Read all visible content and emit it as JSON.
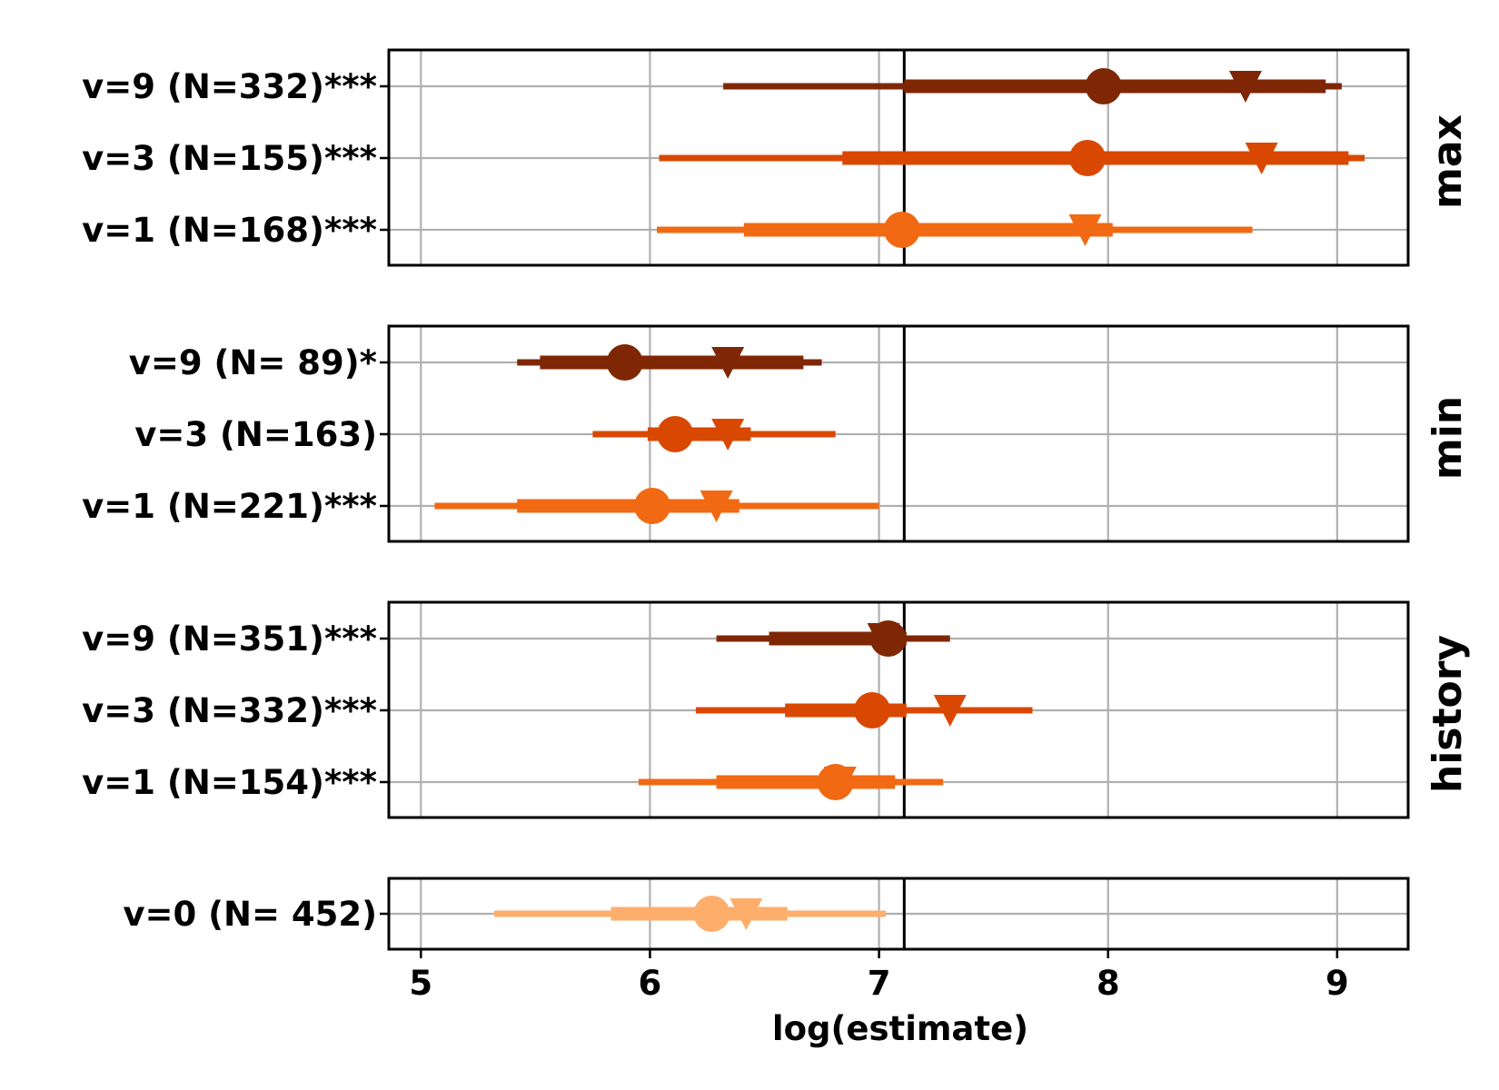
{
  "chart_data": {
    "type": "forest",
    "xlabel": "log(estimate)",
    "xlim": [
      4.86,
      9.31
    ],
    "x_ticks": [
      "5",
      "6",
      "7",
      "8",
      "9"
    ],
    "reference_line": 7.11,
    "grid": true,
    "colors": {
      "v0": "#fdae6b",
      "v1": "#f16913",
      "v3": "#d94801",
      "v9": "#7f2704"
    },
    "panels": [
      {
        "facet": "max",
        "rows": [
          {
            "label": "v=9 (N=332)***",
            "color_key": "v9",
            "outer": [
              6.32,
              9.02
            ],
            "inner": [
              7.11,
              8.95
            ],
            "point": 7.98,
            "triangle": 8.6
          },
          {
            "label": "v=3 (N=155)***",
            "color_key": "v3",
            "outer": [
              6.04,
              9.12
            ],
            "inner": [
              6.84,
              9.05
            ],
            "point": 7.91,
            "triangle": 8.67
          },
          {
            "label": "v=1 (N=168)***",
            "color_key": "v1",
            "outer": [
              6.03,
              8.63
            ],
            "inner": [
              6.41,
              8.02
            ],
            "point": 7.1,
            "triangle": 7.9
          }
        ]
      },
      {
        "facet": "min",
        "rows": [
          {
            "label": "v=9 (N=  89)*",
            "color_key": "v9",
            "outer": [
              5.42,
              6.75
            ],
            "inner": [
              5.52,
              6.67
            ],
            "point": 5.89,
            "triangle": 6.34
          },
          {
            "label": "v=3 (N=163)",
            "color_key": "v3",
            "outer": [
              5.75,
              6.81
            ],
            "inner": [
              5.99,
              6.44
            ],
            "point": 6.11,
            "triangle": 6.34
          },
          {
            "label": "v=1 (N=221)***",
            "color_key": "v1",
            "outer": [
              5.06,
              7.0
            ],
            "inner": [
              5.42,
              6.39
            ],
            "point": 6.01,
            "triangle": 6.29
          }
        ]
      },
      {
        "facet": "history",
        "rows": [
          {
            "label": "v=9 (N=351)***",
            "color_key": "v9",
            "outer": [
              6.29,
              7.31
            ],
            "inner": [
              6.52,
              7.12
            ],
            "point": 7.04,
            "triangle": 7.02
          },
          {
            "label": "v=3 (N=332)***",
            "color_key": "v3",
            "outer": [
              6.2,
              7.67
            ],
            "inner": [
              6.59,
              7.12
            ],
            "point": 6.97,
            "triangle": 7.31
          },
          {
            "label": "v=1 (N=154)***",
            "color_key": "v1",
            "outer": [
              5.95,
              7.28
            ],
            "inner": [
              6.29,
              7.07
            ],
            "point": 6.81,
            "triangle": 6.83
          }
        ]
      },
      {
        "facet": "",
        "rows": [
          {
            "label": "v=0 (N= 452)",
            "color_key": "v0",
            "outer": [
              5.32,
              7.03
            ],
            "inner": [
              5.83,
              6.6
            ],
            "point": 6.27,
            "triangle": 6.42
          }
        ]
      }
    ]
  }
}
